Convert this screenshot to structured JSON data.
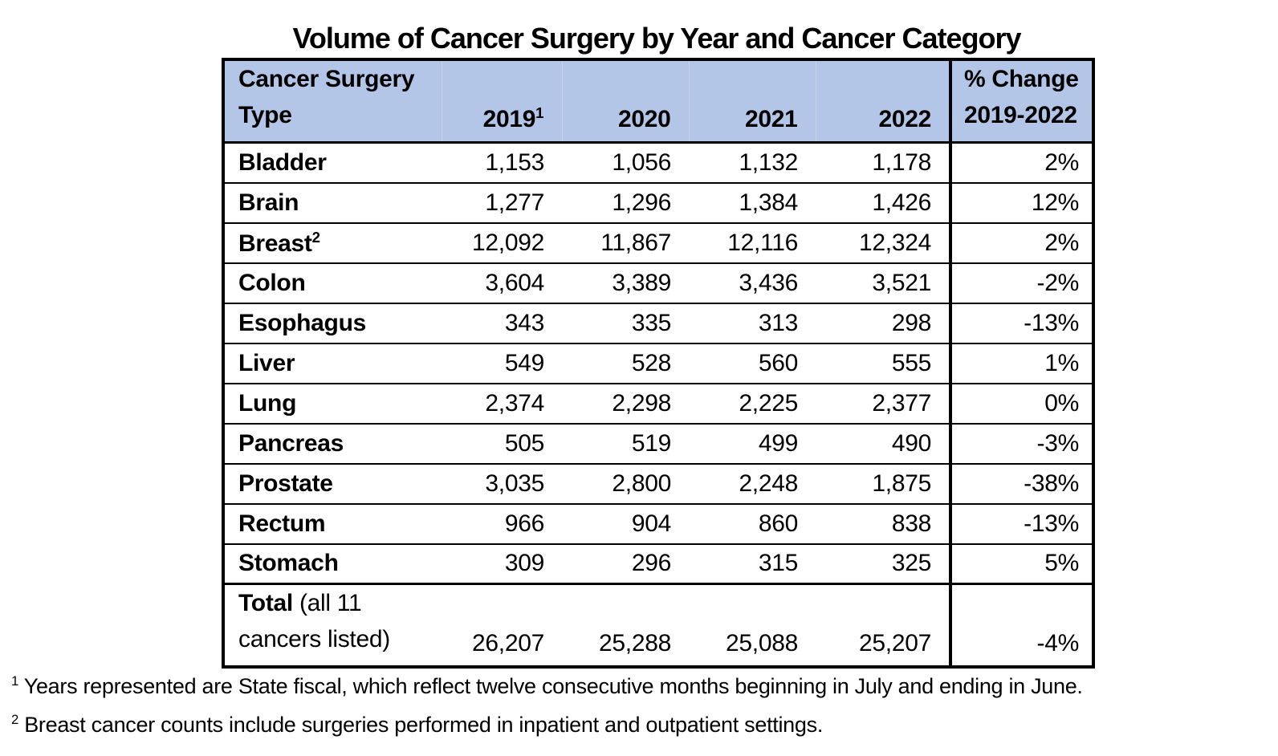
{
  "title": "Volume of Cancer Surgery by Year and Cancer Category",
  "colors": {
    "header_bg": "#b4c6e7",
    "border": "#000000",
    "background": "#ffffff"
  },
  "table": {
    "header": {
      "type_line1": "Cancer Surgery",
      "type_line2": "Type",
      "years": [
        "2019",
        "2020",
        "2021",
        "2022"
      ],
      "year_2019_sup": "1",
      "pct_line1": "% Change",
      "pct_line2": "2019-2022"
    },
    "rows": [
      {
        "type": "Bladder",
        "sup": "",
        "values": [
          "1,153",
          "1,056",
          "1,132",
          "1,178"
        ],
        "pct": "2%"
      },
      {
        "type": "Brain",
        "sup": "",
        "values": [
          "1,277",
          "1,296",
          "1,384",
          "1,426"
        ],
        "pct": "12%"
      },
      {
        "type": "Breast",
        "sup": "2",
        "values": [
          "12,092",
          "11,867",
          "12,116",
          "12,324"
        ],
        "pct": "2%"
      },
      {
        "type": "Colon",
        "sup": "",
        "values": [
          "3,604",
          "3,389",
          "3,436",
          "3,521"
        ],
        "pct": "-2%"
      },
      {
        "type": "Esophagus",
        "sup": "",
        "values": [
          "343",
          "335",
          "313",
          "298"
        ],
        "pct": "-13%"
      },
      {
        "type": "Liver",
        "sup": "",
        "values": [
          "549",
          "528",
          "560",
          "555"
        ],
        "pct": "1%"
      },
      {
        "type": "Lung",
        "sup": "",
        "values": [
          "2,374",
          "2,298",
          "2,225",
          "2,377"
        ],
        "pct": "0%"
      },
      {
        "type": "Pancreas",
        "sup": "",
        "values": [
          "505",
          "519",
          "499",
          "490"
        ],
        "pct": "-3%"
      },
      {
        "type": "Prostate",
        "sup": "",
        "values": [
          "3,035",
          "2,800",
          "2,248",
          "1,875"
        ],
        "pct": "-38%"
      },
      {
        "type": "Rectum",
        "sup": "",
        "values": [
          "966",
          "904",
          "860",
          "838"
        ],
        "pct": "-13%"
      },
      {
        "type": "Stomach",
        "sup": "",
        "values": [
          "309",
          "296",
          "315",
          "325"
        ],
        "pct": "5%"
      }
    ],
    "total": {
      "label_bold": "Total",
      "label_rest": " (all 11 cancers listed)",
      "values": [
        "26,207",
        "25,288",
        "25,088",
        "25,207"
      ],
      "pct": "-4%"
    }
  },
  "footnotes": [
    {
      "sup": "1",
      "text": "Years represented are State fiscal, which reflect twelve consecutive months beginning in July and ending in June."
    },
    {
      "sup": "2",
      "text": "Breast cancer counts include surgeries performed in inpatient and outpatient settings."
    }
  ]
}
